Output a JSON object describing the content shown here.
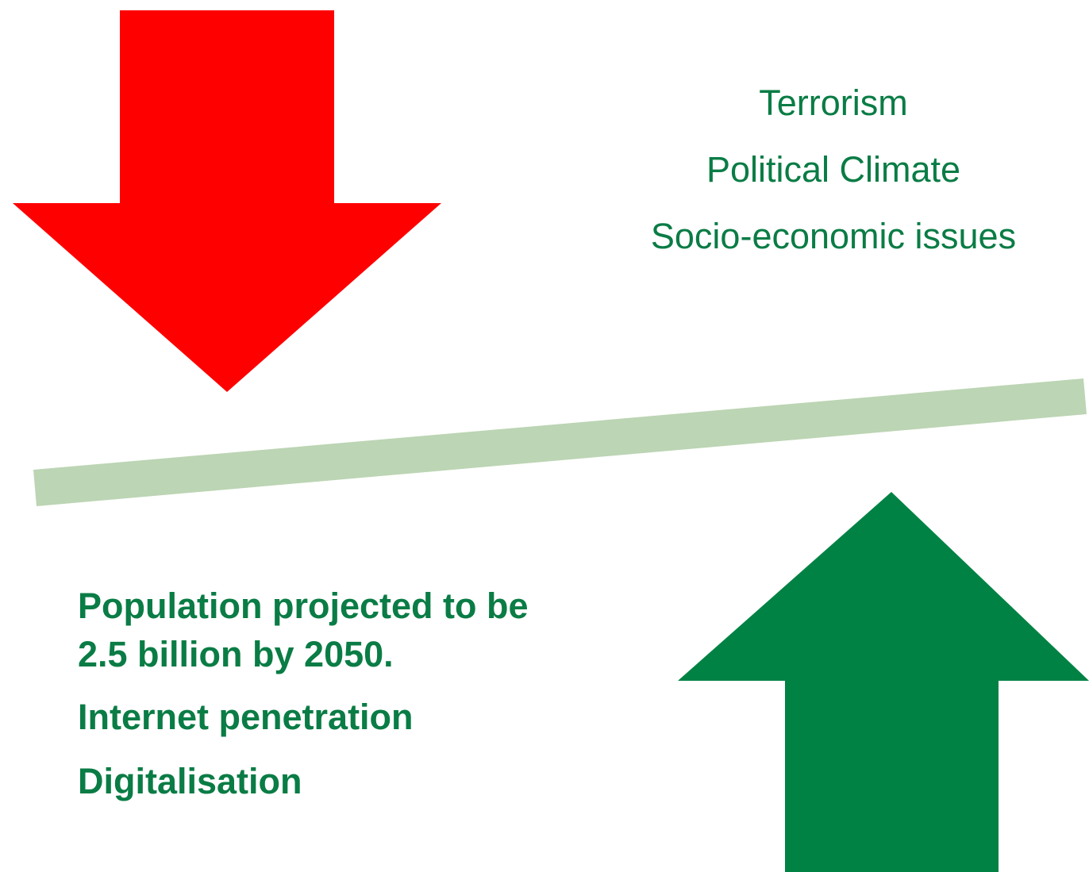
{
  "colors": {
    "down_arrow": "#ff0000",
    "up_arrow": "#008244",
    "balance_beam": "#bcd5b4",
    "text_green": "#0a7c45"
  },
  "negatives": [
    "Terrorism",
    "Political Climate",
    "Socio-economic issues"
  ],
  "positives": [
    "Population projected to be 2.5 billion by 2050.",
    "Internet penetration",
    "Digitalisation"
  ]
}
